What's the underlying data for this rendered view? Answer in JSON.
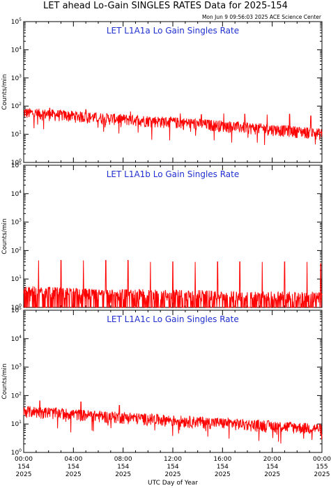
{
  "title": "LET ahead Lo-Gain SINGLES RATES Data for 2025-154",
  "timestamp": "Mon Jun  9 09:56:03 2025 ACE Science Center",
  "colors": {
    "series": "#ff0000",
    "panel_title": "#1f2fd0",
    "axes": "#000000"
  },
  "chart_data": [
    {
      "type": "line",
      "title": "LET L1A1a Lo Gain Singles Rate",
      "ylabel": "Counts/min",
      "yscale": "log",
      "ylim": [
        1,
        100000
      ],
      "yticks": [
        {
          "base": "10",
          "exp": "0"
        },
        {
          "base": "10",
          "exp": "1"
        },
        {
          "base": "10",
          "exp": "2"
        },
        {
          "base": "10",
          "exp": "3"
        },
        {
          "base": "10",
          "exp": "4"
        },
        {
          "base": "10",
          "exp": "5"
        }
      ],
      "trend": {
        "x_hours": [
          0,
          6,
          12,
          18,
          24
        ],
        "y": [
          60,
          40,
          28,
          18,
          11
        ]
      },
      "spikes": {
        "x_hours": [
          2.1,
          5.0,
          8.6,
          12.6,
          14.3,
          16.1,
          17.8,
          19.6,
          21.4,
          23.1
        ],
        "y": [
          85,
          75,
          65,
          55,
          50,
          55,
          52,
          50,
          52,
          45
        ]
      }
    },
    {
      "type": "line",
      "title": "LET L1A1b Lo Gain Singles Rate",
      "ylabel": "Counts/min",
      "yscale": "log",
      "ylim": [
        1,
        100000
      ],
      "yticks": [
        {
          "base": "10",
          "exp": "0"
        },
        {
          "base": "10",
          "exp": "1"
        },
        {
          "base": "10",
          "exp": "2"
        },
        {
          "base": "10",
          "exp": "3"
        },
        {
          "base": "10",
          "exp": "4"
        },
        {
          "base": "10",
          "exp": "5"
        }
      ],
      "trend": {
        "x_hours": [
          0,
          6,
          12,
          18,
          24
        ],
        "y": [
          4,
          3,
          3,
          2.5,
          2.5
        ]
      },
      "spikes": {
        "x_hours": [
          1.2,
          3.0,
          4.8,
          6.6,
          8.4,
          10.2,
          12.0,
          13.8,
          15.6,
          17.4,
          19.2,
          21.0,
          22.8,
          23.9
        ],
        "y": [
          45,
          45,
          45,
          45,
          45,
          40,
          40,
          40,
          40,
          40,
          40,
          40,
          40,
          35
        ]
      }
    },
    {
      "type": "line",
      "title": "LET L1A1c Lo Gain Singles Rate",
      "ylabel": "Counts/min",
      "yscale": "log",
      "ylim": [
        1,
        100000
      ],
      "yticks": [
        {
          "base": "10",
          "exp": "0"
        },
        {
          "base": "10",
          "exp": "1"
        },
        {
          "base": "10",
          "exp": "2"
        },
        {
          "base": "10",
          "exp": "3"
        },
        {
          "base": "10",
          "exp": "4"
        },
        {
          "base": "10",
          "exp": "5"
        }
      ],
      "trend": {
        "x_hours": [
          0,
          6,
          12,
          18,
          24
        ],
        "y": [
          30,
          20,
          14,
          10,
          7
        ]
      },
      "spikes": {
        "x_hours": [
          1.3,
          4.6,
          7.7
        ],
        "y": [
          65,
          60,
          45
        ]
      }
    }
  ],
  "xaxis": {
    "label": "UTC Day of Year",
    "ticks": [
      {
        "hour": 0,
        "time": "00:00",
        "doy": "154",
        "year": "2025"
      },
      {
        "hour": 4,
        "time": "04:00",
        "doy": "154",
        "year": "2025"
      },
      {
        "hour": 8,
        "time": "08:00",
        "doy": "154",
        "year": "2025"
      },
      {
        "hour": 12,
        "time": "12:00",
        "doy": "154",
        "year": "2025"
      },
      {
        "hour": 16,
        "time": "16:00",
        "doy": "154",
        "year": "2025"
      },
      {
        "hour": 20,
        "time": "20:00",
        "doy": "154",
        "year": "2025"
      },
      {
        "hour": 24,
        "time": "00:00",
        "doy": "155",
        "year": "2025"
      }
    ]
  }
}
